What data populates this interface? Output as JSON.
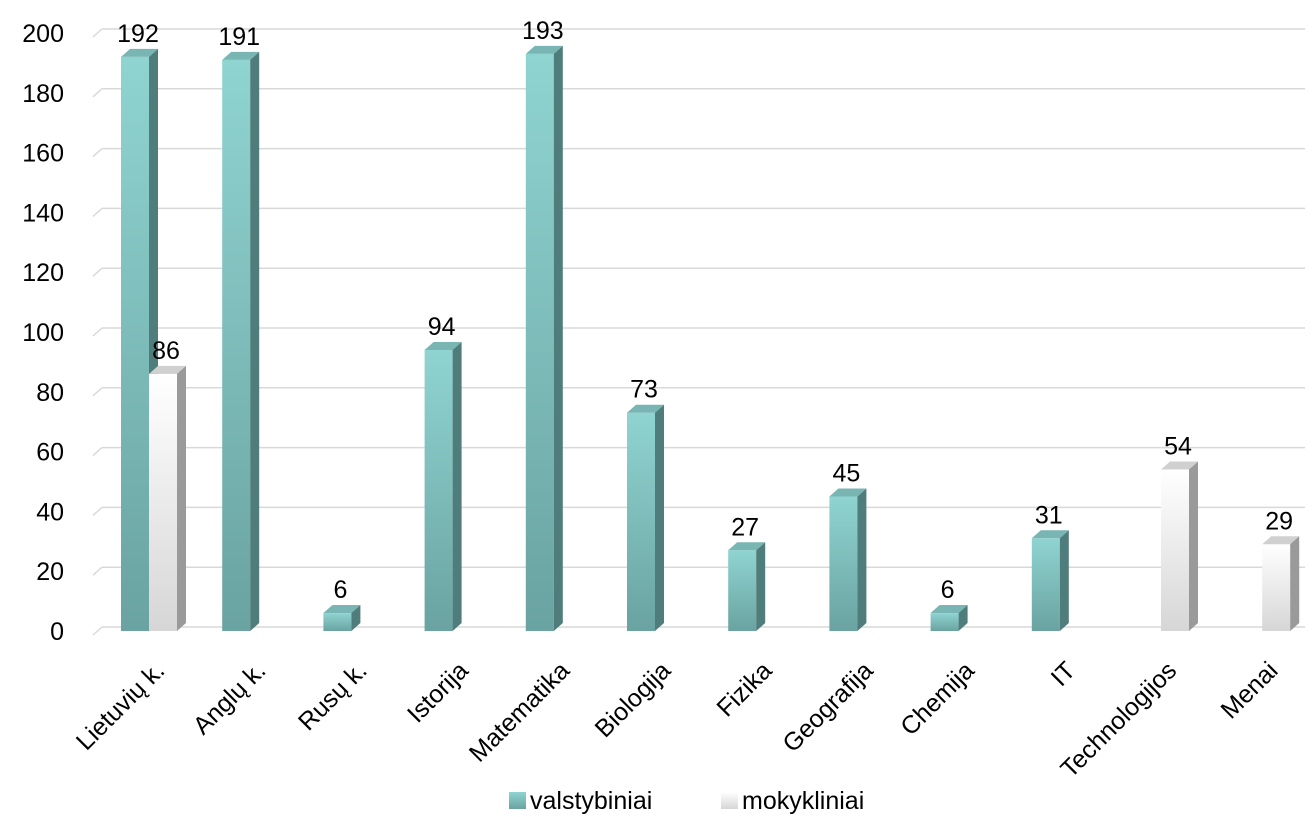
{
  "chart_data": {
    "type": "bar",
    "categories": [
      "Lietuvių k.",
      "Anglų k.",
      "Rusų k.",
      "Istorija",
      "Matematika",
      "Biologija",
      "Fizika",
      "Geografija",
      "Chemija",
      "IT",
      "Technologijos",
      "Menai"
    ],
    "series": [
      {
        "name": "valstybiniai",
        "values": [
          192,
          191,
          6,
          94,
          193,
          73,
          27,
          45,
          6,
          31,
          null,
          null
        ],
        "color": "#7fbfbd"
      },
      {
        "name": "mokykliniai",
        "values": [
          86,
          null,
          null,
          null,
          null,
          null,
          null,
          null,
          null,
          null,
          54,
          29
        ],
        "color": "#e6e6e6"
      }
    ],
    "yticks": [
      0,
      20,
      40,
      60,
      80,
      100,
      120,
      140,
      160,
      180,
      200
    ],
    "ylim": [
      0,
      200
    ],
    "grid": true,
    "legend": "bottom",
    "style": "3d-column"
  }
}
